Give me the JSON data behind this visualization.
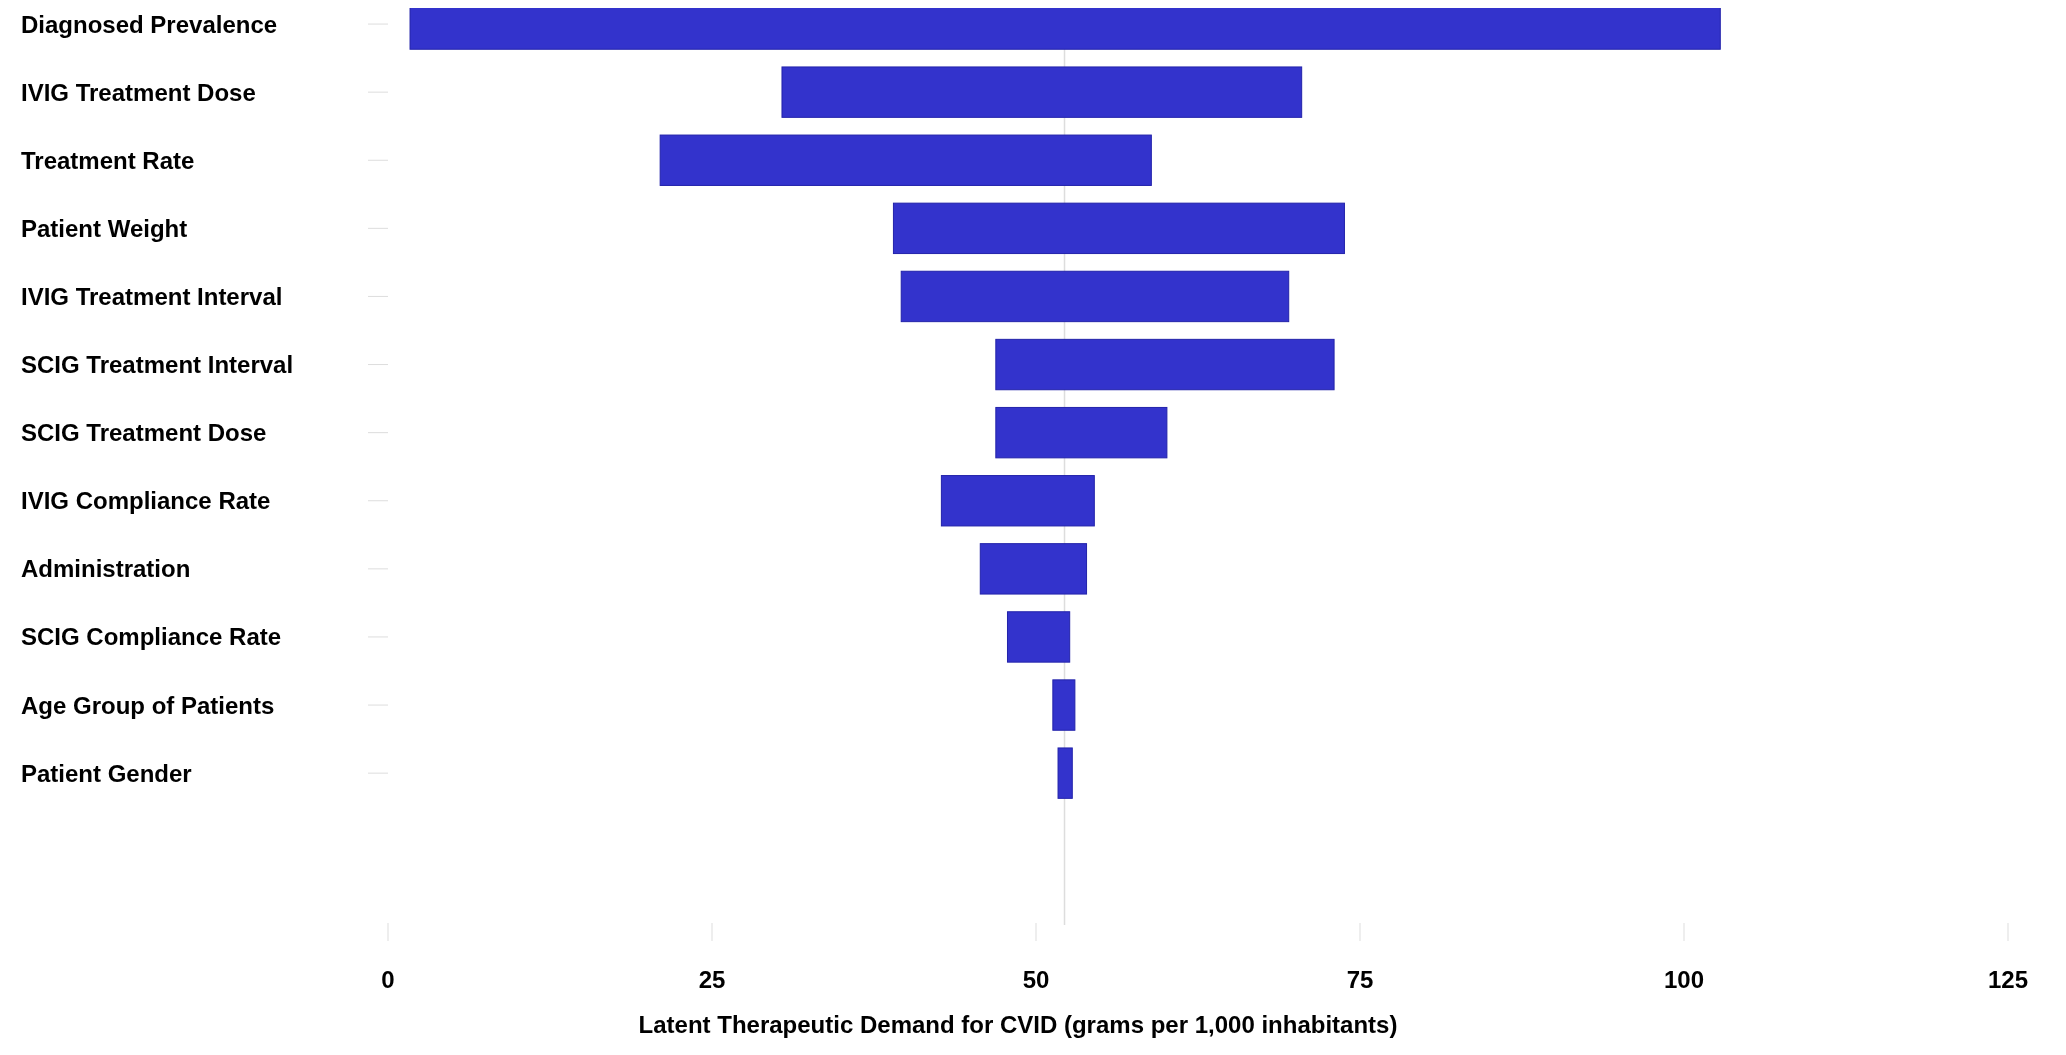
{
  "chart_data": {
    "type": "bar",
    "orientation": "horizontal",
    "xlabel": "Latent Therapeutic Demand for CVID (grams per 1,000 inhabitants)",
    "categories": [
      "Diagnosed Prevalence",
      "IVIG Treatment Dose",
      "Treatment Rate",
      "Patient Weight",
      "IVIG Treatment Interval",
      "SCIG Treatment Interval",
      "SCIG Treatment Dose",
      "IVIG Compliance Rate",
      "Administration",
      "SCIG Compliance Rate",
      "Age Group of Patients",
      "Patient Gender"
    ],
    "base": [
      1.7,
      30.4,
      21.0,
      39.0,
      39.6,
      46.9,
      46.9,
      42.7,
      45.7,
      47.8,
      51.3,
      51.7
    ],
    "values": [
      101.1,
      40.1,
      37.9,
      34.8,
      29.9,
      26.1,
      13.2,
      11.8,
      8.2,
      4.8,
      1.7,
      1.1
    ],
    "color": "#3333cc",
    "xlim": [
      0,
      125
    ],
    "xticks": [
      0,
      25,
      50,
      75,
      100,
      125
    ],
    "ref_lines": [
      {
        "axis": "x",
        "value": 52.2,
        "color": "#dddddd"
      }
    ],
    "grid": false
  }
}
